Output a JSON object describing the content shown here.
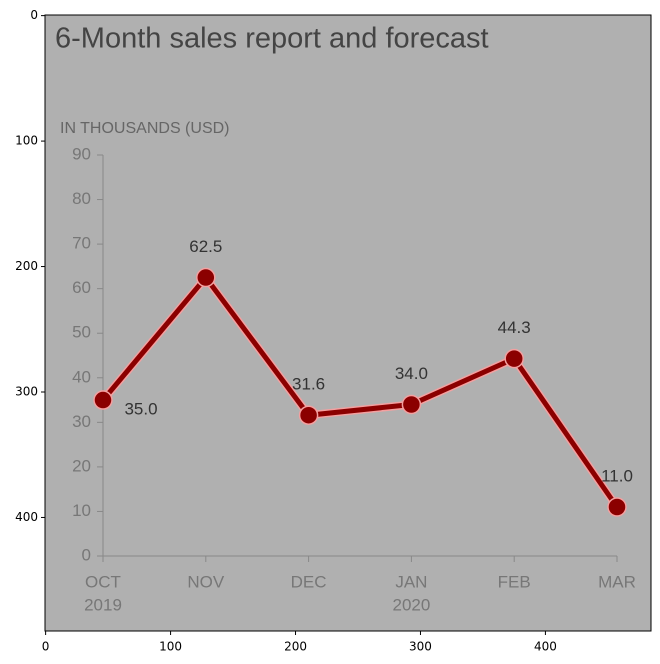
{
  "chart_data": [
    {
      "type": "line",
      "title": "6-Month sales report and forecast",
      "ylabel": "IN THOUSANDS (USD)",
      "categories": [
        "OCT",
        "NOV",
        "DEC",
        "JAN",
        "FEB",
        "MAR"
      ],
      "year_labels": [
        "2019",
        null,
        null,
        "2020",
        null,
        null
      ],
      "values": [
        35.0,
        62.5,
        31.6,
        34.0,
        44.3,
        11.0
      ],
      "value_labels": [
        "35.0",
        "62.5",
        "31.6",
        "34.0",
        "44.3",
        "11.0"
      ],
      "color": "#8b0000",
      "ylim": [
        0,
        90
      ],
      "yticks": [
        0,
        10,
        20,
        30,
        40,
        50,
        60,
        70,
        80,
        90
      ]
    },
    {
      "type": "image",
      "xlim": [
        -0.5,
        484.5
      ],
      "ylim": [
        490.5,
        -0.5
      ],
      "xticks": [
        0,
        100,
        200,
        300,
        400
      ],
      "yticks": [
        0,
        100,
        200,
        300,
        400
      ]
    }
  ]
}
